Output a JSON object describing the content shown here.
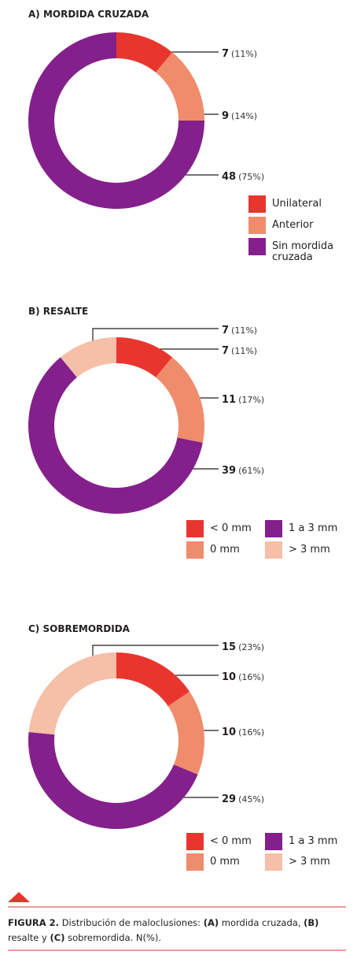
{
  "chart_data": [
    {
      "type": "pie",
      "donut": true,
      "title": "A) MORDIDA CRUZADA",
      "categories": [
        "Unilateral",
        "Anterior",
        "Sin mordida cruzada"
      ],
      "values": [
        7,
        9,
        48
      ],
      "percent_labels": [
        "(11%)",
        "(14%)",
        "(75%)"
      ],
      "colors": [
        "#e8362f",
        "#ef8c6c",
        "#84208b"
      ]
    },
    {
      "type": "pie",
      "donut": true,
      "title": "B) RESALTE",
      "categories": [
        "< 0 mm",
        "0 mm",
        "1 a 3 mm",
        "> 3 mm"
      ],
      "values": [
        7,
        11,
        39,
        7
      ],
      "percent_labels": [
        "(11%)",
        "(17%)",
        "(61%)",
        "(11%)"
      ],
      "colors": [
        "#e8362f",
        "#ef8c6c",
        "#84208b",
        "#f5bfa8"
      ]
    },
    {
      "type": "pie",
      "donut": true,
      "title": "C) SOBREMORDIDA",
      "categories": [
        "< 0 mm",
        "0 mm",
        "1 a 3 mm",
        "> 3 mm"
      ],
      "values": [
        10,
        10,
        29,
        15
      ],
      "percent_labels": [
        "(16%)",
        "(16%)",
        "(45%)",
        "(23%)"
      ],
      "colors": [
        "#e8362f",
        "#ef8c6c",
        "#84208b",
        "#f5bfa8"
      ]
    }
  ],
  "caption": {
    "parts": [
      "FIGURA 2.",
      "Distribución de maloclusiones:",
      "(A)",
      "mordida cruzada,",
      "(B)",
      "resalte y",
      "(C)",
      "sobremordida. N(%)."
    ],
    "bold": [
      true,
      false,
      true,
      false,
      true,
      false,
      true,
      false
    ]
  }
}
